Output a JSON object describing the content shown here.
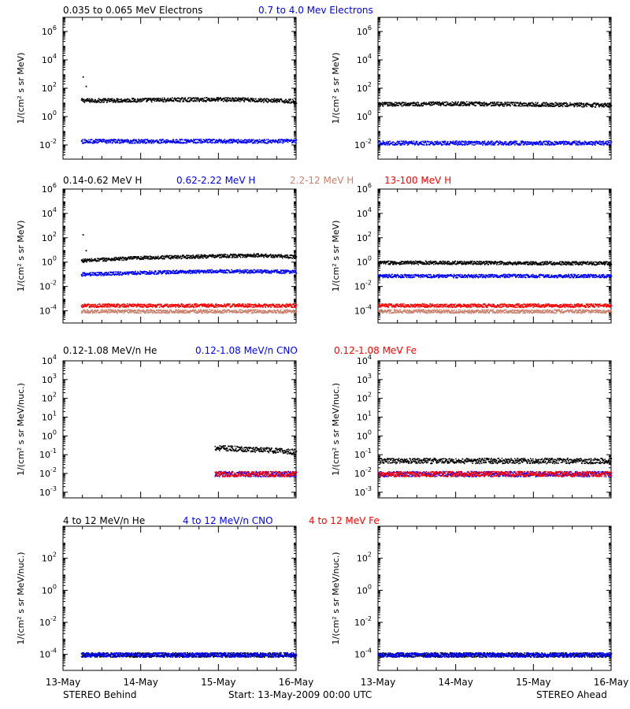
{
  "footer": {
    "left": "STEREO Behind",
    "center": "Start: 13-May-2009 00:00 UTC",
    "right": "STEREO Ahead"
  },
  "x_ticks": [
    "13-May",
    "14-May",
    "15-May",
    "16-May"
  ],
  "colors": {
    "black": "#000000",
    "blue": "#0000ff",
    "salmon": "#c8826e",
    "red": "#ff0000",
    "frame": "#000000"
  },
  "rows": [
    {
      "ylabel": "1/(cm² s sr MeV)",
      "legend": [
        {
          "text": "0.035 to 0.065 MeV Electrons",
          "color": "#000000"
        },
        {
          "text": "0.7 to 4.0 Mev Electrons",
          "color": "#0000ff"
        }
      ],
      "ticks": [
        "10^-2",
        "10^0",
        "10^2",
        "10^4",
        "10^6"
      ]
    },
    {
      "ylabel": "1/(cm² s sr MeV)",
      "legend": [
        {
          "text": "0.14-0.62 MeV H",
          "color": "#000000"
        },
        {
          "text": "0.62-2.22 MeV H",
          "color": "#0000ff"
        },
        {
          "text": "2.2-12 MeV H",
          "color": "#c8826e"
        },
        {
          "text": "13-100 MeV H",
          "color": "#ff0000"
        }
      ],
      "ticks": [
        "10^-4",
        "10^-2",
        "10^0",
        "10^2",
        "10^4",
        "10^6"
      ]
    },
    {
      "ylabel": "1/(cm² s sr MeV/nuc.)",
      "legend": [
        {
          "text": "0.12-1.08 MeV/n He",
          "color": "#000000"
        },
        {
          "text": "0.12-1.08 MeV/n CNO",
          "color": "#0000ff"
        },
        {
          "text": "0.12-1.08 MeV Fe",
          "color": "#ff0000"
        }
      ],
      "ticks": [
        "10^-3",
        "10^-2",
        "10^-1",
        "10^0",
        "10^1",
        "10^2",
        "10^3",
        "10^4"
      ]
    },
    {
      "ylabel": "1/(cm² s sr MeV/nuc.)",
      "legend": [
        {
          "text": "4 to 12 MeV/n He",
          "color": "#000000"
        },
        {
          "text": "4 to 12 MeV/n CNO",
          "color": "#0000ff"
        },
        {
          "text": "4 to 12 MeV Fe",
          "color": "#ff0000"
        }
      ],
      "ticks": [
        "10^-4",
        "10^-2",
        "10^0",
        "10^2"
      ]
    }
  ],
  "chart_data": [
    {
      "type": "scatter",
      "panel": "electrons",
      "spacecraft": "Behind",
      "yscale": "log",
      "xlim": [
        0,
        3
      ],
      "ylim": [
        -3,
        7
      ],
      "series": [
        {
          "name": "0.035 to 0.065 MeV Electrons",
          "color": "#000000",
          "start": 0.23,
          "x": [
            0,
            0.5,
            1,
            1.5,
            2,
            2.5,
            3
          ],
          "y": [
            15,
            15,
            16,
            17,
            18,
            16,
            13
          ],
          "spike": {
            "x": [
              0.02,
              0.06
            ],
            "y": [
              700,
              150
            ]
          }
        },
        {
          "name": "0.7 to 4.0 Mev Electrons",
          "color": "#0000ff",
          "start": 0.23,
          "x": [
            0,
            1,
            2,
            3
          ],
          "y": [
            0.02,
            0.02,
            0.02,
            0.02
          ]
        }
      ]
    },
    {
      "type": "scatter",
      "panel": "electrons",
      "spacecraft": "Ahead",
      "yscale": "log",
      "xlim": [
        0,
        3
      ],
      "ylim": [
        -3,
        7
      ],
      "series": [
        {
          "name": "0.035 to 0.065 MeV Electrons",
          "color": "#000000",
          "start": 0.0,
          "x": [
            0,
            1,
            2,
            3
          ],
          "y": [
            8,
            9,
            8,
            7
          ]
        },
        {
          "name": "0.7 to 4.0 Mev Electrons",
          "color": "#0000ff",
          "start": 0.0,
          "x": [
            0,
            1,
            2,
            3
          ],
          "y": [
            0.015,
            0.015,
            0.015,
            0.015
          ]
        }
      ]
    },
    {
      "type": "scatter",
      "panel": "protons",
      "spacecraft": "Behind",
      "yscale": "log",
      "xlim": [
        0,
        3
      ],
      "ylim": [
        -5,
        6
      ],
      "series": [
        {
          "name": "0.14-0.62 MeV H",
          "color": "#000000",
          "start": 0.23,
          "x": [
            0,
            0.5,
            1,
            1.5,
            2,
            2.5,
            3
          ],
          "y": [
            1.2,
            1.8,
            2.5,
            3,
            3.5,
            4,
            3
          ],
          "spike": {
            "x": [
              0.02,
              0.06
            ],
            "y": [
              200,
              10
            ]
          }
        },
        {
          "name": "0.62-2.22 MeV H",
          "color": "#0000ff",
          "start": 0.23,
          "x": [
            0,
            1,
            2,
            3
          ],
          "y": [
            0.1,
            0.15,
            0.2,
            0.18
          ]
        },
        {
          "name": "2.2-12 MeV H",
          "color": "#c8826e",
          "start": 0.23,
          "x": [
            0,
            3
          ],
          "y": [
            0.0001,
            0.0001
          ]
        },
        {
          "name": "13-100 MeV H",
          "color": "#ff0000",
          "start": 0.23,
          "x": [
            0,
            3
          ],
          "y": [
            0.0003,
            0.0003
          ]
        }
      ]
    },
    {
      "type": "scatter",
      "panel": "protons",
      "spacecraft": "Ahead",
      "yscale": "log",
      "xlim": [
        0,
        3
      ],
      "ylim": [
        -5,
        6
      ],
      "series": [
        {
          "name": "0.14-0.62 MeV H",
          "color": "#000000",
          "start": 0.0,
          "x": [
            0,
            1,
            2,
            3
          ],
          "y": [
            1.0,
            1.0,
            0.9,
            0.9
          ]
        },
        {
          "name": "0.62-2.22 MeV H",
          "color": "#0000ff",
          "start": 0.0,
          "x": [
            0,
            1,
            2,
            3
          ],
          "y": [
            0.08,
            0.08,
            0.08,
            0.08
          ]
        },
        {
          "name": "2.2-12 MeV H",
          "color": "#c8826e",
          "start": 0.0,
          "x": [
            0,
            3
          ],
          "y": [
            0.0001,
            0.0001
          ]
        },
        {
          "name": "13-100 MeV H",
          "color": "#ff0000",
          "start": 0.0,
          "x": [
            0,
            3
          ],
          "y": [
            0.0003,
            0.0003
          ]
        }
      ]
    },
    {
      "type": "scatter",
      "panel": "heavy_ions_low",
      "spacecraft": "Behind",
      "yscale": "log",
      "xlim": [
        0,
        3
      ],
      "ylim": [
        -3.3,
        4
      ],
      "series": [
        {
          "name": "0.12-1.08 MeV/n He",
          "color": "#000000",
          "start": 1.95,
          "x": [
            1.95,
            2.5,
            3
          ],
          "y": [
            0.25,
            0.2,
            0.15
          ]
        },
        {
          "name": "0.12-1.08 MeV/n CNO",
          "color": "#0000ff",
          "start": 1.95,
          "x": [
            1.95,
            3
          ],
          "y": [
            0.01,
            0.01
          ]
        },
        {
          "name": "0.12-1.08 MeV Fe",
          "color": "#ff0000",
          "start": 1.95,
          "x": [
            1.95,
            3
          ],
          "y": [
            0.01,
            0.01
          ]
        }
      ]
    },
    {
      "type": "scatter",
      "panel": "heavy_ions_low",
      "spacecraft": "Ahead",
      "yscale": "log",
      "xlim": [
        0,
        3
      ],
      "ylim": [
        -3.3,
        4
      ],
      "series": [
        {
          "name": "0.12-1.08 MeV/n He",
          "color": "#000000",
          "start": 0.0,
          "x": [
            0,
            3
          ],
          "y": [
            0.05,
            0.05
          ]
        },
        {
          "name": "0.12-1.08 MeV/n CNO",
          "color": "#0000ff",
          "start": 0.0,
          "x": [
            0,
            3
          ],
          "y": [
            0.01,
            0.01
          ]
        },
        {
          "name": "0.12-1.08 MeV Fe",
          "color": "#ff0000",
          "start": 0.0,
          "x": [
            0,
            3
          ],
          "y": [
            0.01,
            0.01
          ]
        }
      ]
    },
    {
      "type": "scatter",
      "panel": "heavy_ions_high",
      "spacecraft": "Behind",
      "yscale": "log",
      "xlim": [
        0,
        3
      ],
      "ylim": [
        -5,
        4
      ],
      "series": [
        {
          "name": "4 to 12 MeV/n He",
          "color": "#000000",
          "start": 0.23,
          "x": [
            0,
            3
          ],
          "y": [
            0.0001,
            0.0001
          ]
        },
        {
          "name": "4 to 12 MeV/n CNO",
          "color": "#0000ff",
          "start": 0.23,
          "x": [
            0,
            3
          ],
          "y": [
            0.0001,
            0.0001
          ]
        }
      ]
    },
    {
      "type": "scatter",
      "panel": "heavy_ions_high",
      "spacecraft": "Ahead",
      "yscale": "log",
      "xlim": [
        0,
        3
      ],
      "ylim": [
        -5,
        4
      ],
      "series": [
        {
          "name": "4 to 12 MeV/n He",
          "color": "#000000",
          "start": 0.0,
          "x": [
            0,
            3
          ],
          "y": [
            0.0001,
            0.0001
          ]
        },
        {
          "name": "4 to 12 MeV/n CNO",
          "color": "#0000ff",
          "start": 0.0,
          "x": [
            0,
            3
          ],
          "y": [
            0.0001,
            0.0001
          ]
        }
      ]
    }
  ]
}
